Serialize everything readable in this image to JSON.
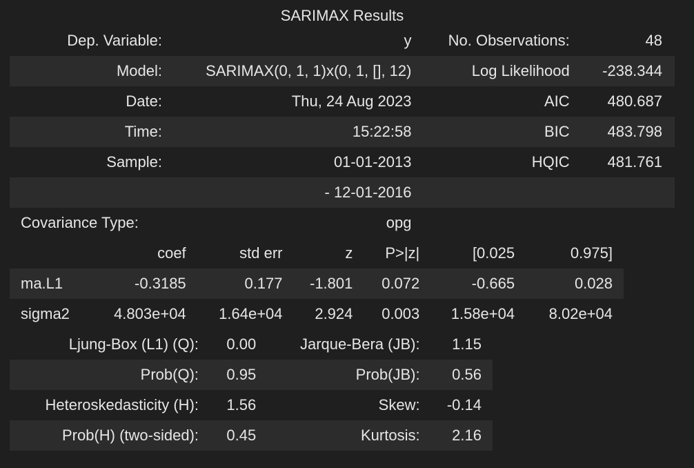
{
  "title": "SARIMAX Results",
  "summary": {
    "rows": [
      {
        "l1": "Dep. Variable:",
        "v1": "y",
        "l2": "No. Observations:",
        "v2": "48"
      },
      {
        "l1": "Model:",
        "v1": "SARIMAX(0, 1, 1)x(0, 1, [], 12)",
        "l2": "Log Likelihood",
        "v2": "-238.344"
      },
      {
        "l1": "Date:",
        "v1": "Thu, 24 Aug 2023",
        "l2": "AIC",
        "v2": "480.687"
      },
      {
        "l1": "Time:",
        "v1": "15:22:58",
        "l2": "BIC",
        "v2": "483.798"
      },
      {
        "l1": "Sample:",
        "v1": "01-01-2013",
        "l2": "HQIC",
        "v2": "481.761"
      },
      {
        "l1": "",
        "v1": "- 12-01-2016",
        "l2": "",
        "v2": ""
      }
    ],
    "covariance_label": "Covariance Type:",
    "covariance_value": "opg"
  },
  "coef_table": {
    "headers": [
      "",
      "coef",
      "std err",
      "z",
      "P>|z|",
      "[0.025",
      "0.975]"
    ],
    "rows": [
      [
        "ma.L1",
        "-0.3185",
        "0.177",
        "-1.801",
        "0.072",
        "-0.665",
        "0.028"
      ],
      [
        "sigma2",
        "4.803e+04",
        "1.64e+04",
        "2.924",
        "0.003",
        "1.58e+04",
        "8.02e+04"
      ]
    ]
  },
  "diagnostics": {
    "rows": [
      {
        "l1": "Ljung-Box (L1) (Q):",
        "v1": "0.00",
        "l2": "Jarque-Bera (JB):",
        "v2": "1.15"
      },
      {
        "l1": "Prob(Q):",
        "v1": "0.95",
        "l2": "Prob(JB):",
        "v2": "0.56"
      },
      {
        "l1": "Heteroskedasticity (H):",
        "v1": "1.56",
        "l2": "Skew:",
        "v2": "-0.14"
      },
      {
        "l1": "Prob(H) (two-sided):",
        "v1": "0.45",
        "l2": "Kurtosis:",
        "v2": "2.16"
      }
    ]
  },
  "colors": {
    "background": "#1f1f1f",
    "row_stripe": "#2c2c2c",
    "text": "#e6e6e6"
  }
}
